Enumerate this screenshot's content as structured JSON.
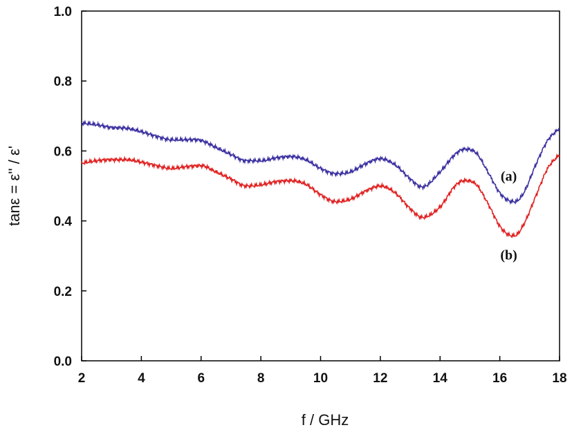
{
  "chart_data": {
    "type": "line",
    "title": "",
    "xlabel": "f / GHz",
    "ylabel": "tanε = ε'' / ε'",
    "xlim": [
      2,
      18
    ],
    "ylim": [
      0.0,
      1.0
    ],
    "x_ticks": [
      2,
      4,
      6,
      8,
      10,
      12,
      14,
      16,
      18
    ],
    "y_ticks": [
      0.0,
      0.2,
      0.4,
      0.6,
      0.8,
      1.0
    ],
    "x_tick_labels": [
      "2",
      "4",
      "6",
      "8",
      "10",
      "12",
      "14",
      "16",
      "18"
    ],
    "y_tick_labels": [
      "0.0",
      "0.2",
      "0.4",
      "0.6",
      "0.8",
      "1.0"
    ],
    "grid": false,
    "legend": "none",
    "series": [
      {
        "label": "(a)",
        "color": "#3a2fa0",
        "label_pos": [
          16.3,
          0.515
        ],
        "x": [
          2.0,
          2.5,
          3.0,
          3.5,
          4.0,
          4.5,
          5.0,
          5.5,
          6.0,
          6.5,
          7.0,
          7.5,
          8.0,
          8.5,
          9.0,
          9.5,
          10.0,
          10.5,
          11.0,
          11.5,
          12.0,
          12.5,
          13.0,
          13.4,
          14.0,
          14.5,
          14.8,
          15.2,
          15.6,
          16.0,
          16.3,
          16.5,
          16.8,
          17.2,
          17.6,
          18.0
        ],
        "y": [
          0.68,
          0.675,
          0.667,
          0.665,
          0.655,
          0.642,
          0.632,
          0.632,
          0.63,
          0.61,
          0.59,
          0.572,
          0.572,
          0.58,
          0.584,
          0.575,
          0.55,
          0.535,
          0.54,
          0.563,
          0.578,
          0.56,
          0.52,
          0.497,
          0.54,
          0.59,
          0.605,
          0.595,
          0.54,
          0.48,
          0.458,
          0.455,
          0.48,
          0.56,
          0.63,
          0.665
        ]
      },
      {
        "label": "(b)",
        "color": "#e02020",
        "label_pos": [
          16.3,
          0.29
        ],
        "x": [
          2.0,
          2.5,
          3.0,
          3.5,
          4.0,
          4.5,
          5.0,
          5.5,
          6.0,
          6.5,
          7.0,
          7.5,
          8.0,
          8.5,
          9.0,
          9.5,
          10.0,
          10.5,
          11.0,
          11.5,
          12.0,
          12.5,
          13.0,
          13.4,
          14.0,
          14.5,
          14.8,
          15.2,
          15.6,
          16.0,
          16.3,
          16.5,
          16.8,
          17.2,
          17.6,
          18.0
        ],
        "y": [
          0.565,
          0.572,
          0.575,
          0.575,
          0.568,
          0.558,
          0.55,
          0.555,
          0.558,
          0.54,
          0.52,
          0.5,
          0.503,
          0.512,
          0.515,
          0.505,
          0.475,
          0.455,
          0.462,
          0.485,
          0.5,
          0.48,
          0.435,
          0.41,
          0.44,
          0.5,
          0.515,
          0.505,
          0.45,
          0.385,
          0.36,
          0.358,
          0.39,
          0.47,
          0.55,
          0.59
        ]
      }
    ]
  }
}
